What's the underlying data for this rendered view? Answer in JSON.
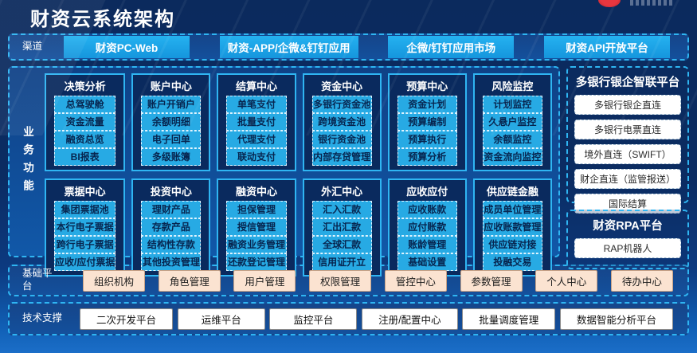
{
  "header": {
    "title": "财资云系统架构"
  },
  "channels": {
    "label": "渠道",
    "items": [
      "财资PC-Web",
      "财资-APP/企微&钉钉应用",
      "企微/钉钉应用市场",
      "财资API开放平台"
    ]
  },
  "business": {
    "label": "业务功能",
    "modules": [
      {
        "title": "决策分析",
        "items": [
          "总驾驶舱",
          "资金流量",
          "融资总览",
          "BI报表"
        ]
      },
      {
        "title": "账户中心",
        "items": [
          "账户开销户",
          "余额明细",
          "电子回单",
          "多级账簿"
        ]
      },
      {
        "title": "结算中心",
        "items": [
          "单笔支付",
          "批量支付",
          "代理支付",
          "联动支付"
        ]
      },
      {
        "title": "资金中心",
        "items": [
          "多银行资金池",
          "跨境资金池",
          "银行资金池",
          "内部存贷管理"
        ]
      },
      {
        "title": "预算中心",
        "items": [
          "资金计划",
          "预算编制",
          "预算执行",
          "预算分析"
        ]
      },
      {
        "title": "风险监控",
        "items": [
          "计划监控",
          "久悬户监控",
          "余额监控",
          "资金流向监控"
        ]
      },
      {
        "title": "票据中心",
        "items": [
          "集团票据池",
          "本行电子票据",
          "跨行电子票据",
          "应收/应付票据"
        ]
      },
      {
        "title": "投资中心",
        "items": [
          "理财产品",
          "存款产品",
          "结构性存款",
          "其他投资管理"
        ]
      },
      {
        "title": "融资中心",
        "items": [
          "担保管理",
          "授信管理",
          "融资业务管理",
          "还款登记管理"
        ]
      },
      {
        "title": "外汇中心",
        "items": [
          "汇入汇款",
          "汇出汇款",
          "全球汇款",
          "信用证开立"
        ]
      },
      {
        "title": "应收应付",
        "items": [
          "应收账款",
          "应付账款",
          "账龄管理",
          "基础设置"
        ]
      },
      {
        "title": "供应链金融",
        "items": [
          "成员单位管理",
          "应收账款管理",
          "供应链对接",
          "投融交易"
        ]
      }
    ]
  },
  "right_panels": [
    {
      "title": "多银行银企智联平台",
      "items": [
        "多银行银企直连",
        "多银行电票直连",
        "境外直连（SWIFT）",
        "财企直连（监管报送）",
        "国际结算"
      ]
    },
    {
      "title": "财资RPA平台",
      "items": [
        "RAP机器人"
      ]
    }
  ],
  "base_platform": {
    "label": "基础平台",
    "items": [
      "组织机构",
      "角色管理",
      "用户管理",
      "权限管理",
      "管控中心",
      "参数管理",
      "个人中心",
      "待办中心"
    ]
  },
  "tech_support": {
    "label": "技术支撑",
    "items": [
      "二次开发平台",
      "运维平台",
      "监控平台",
      "注册/配置中心",
      "批量调度管理",
      "数据智能分析平台"
    ]
  },
  "colors": {
    "background_navy": "#0b2a5d",
    "panel_blue": "#1158a8",
    "border_cyan": "#2fb5f2",
    "button_cyan": "#27aae4",
    "button_peach": "#fbe3d1",
    "button_white": "#ffffff",
    "logo_red": "#d0202a"
  }
}
